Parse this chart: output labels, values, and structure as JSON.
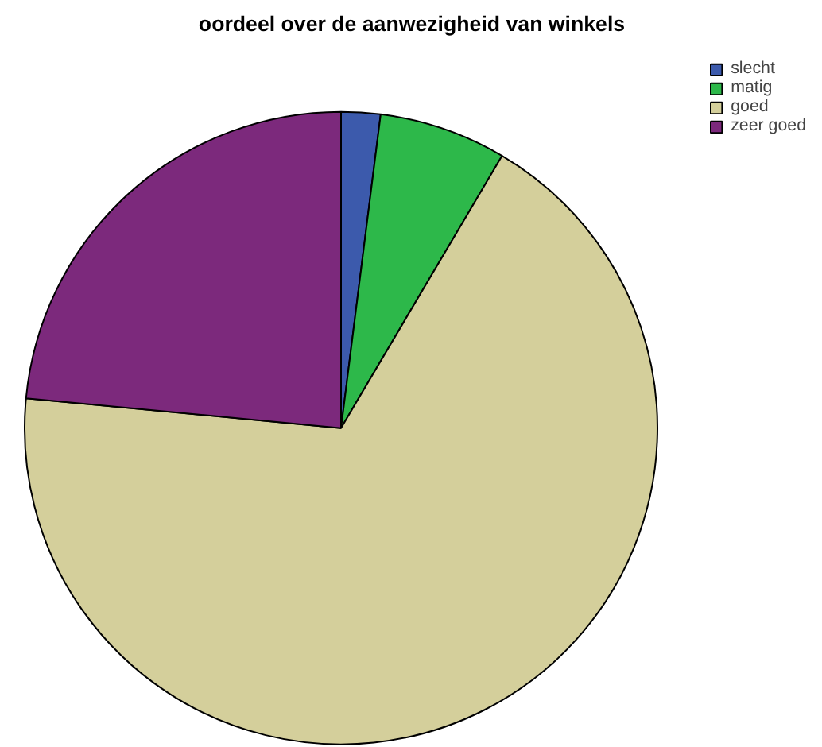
{
  "chart_data": {
    "type": "pie",
    "title": "oordeel over de aanwezigheid van winkels",
    "categories": [
      "slecht",
      "matig",
      "goed",
      "zeer goed"
    ],
    "values": [
      2,
      6.5,
      68,
      23.5
    ],
    "colors": [
      "#3c5aac",
      "#2db84a",
      "#d4cf9b",
      "#7c297c"
    ],
    "legend": "top right"
  }
}
